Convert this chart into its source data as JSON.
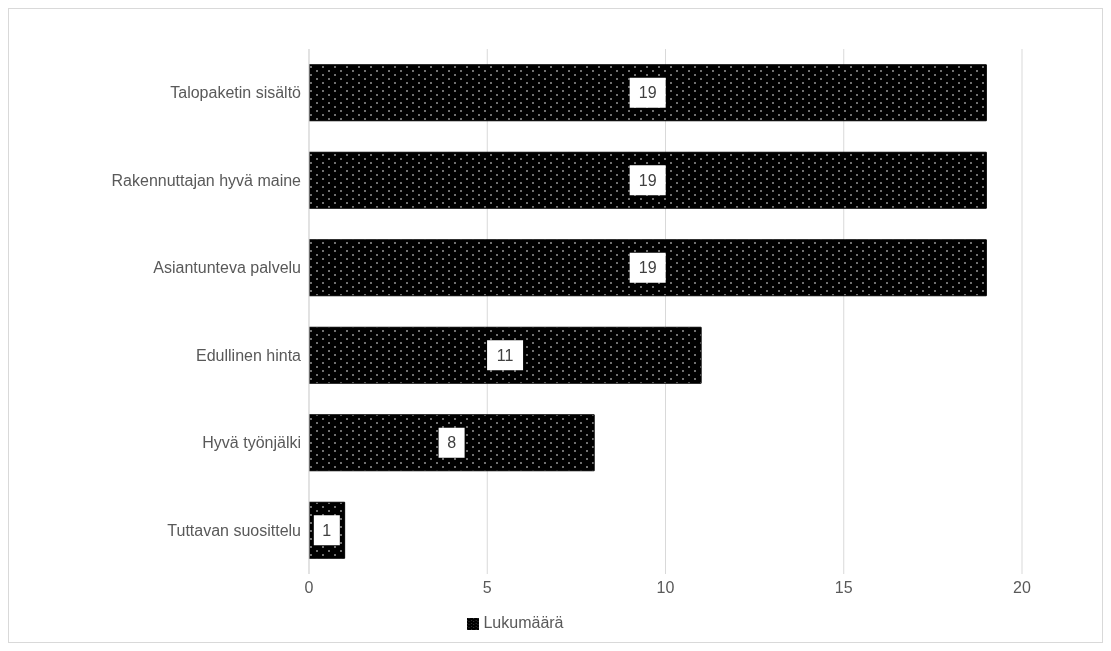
{
  "chart_data": {
    "type": "bar",
    "orientation": "horizontal",
    "categories": [
      "Talopaketin sisältö",
      "Rakennuttajan hyvä maine",
      "Asiantunteva palvelu",
      "Edullinen hinta",
      "Hyvä työnjälki",
      "Tuttavan suosittelu"
    ],
    "series": [
      {
        "name": "Lukumäärä",
        "color": "#000000",
        "values": [
          19,
          19,
          19,
          11,
          8,
          1
        ]
      }
    ],
    "xlim": [
      0,
      20
    ],
    "xticks": [
      0,
      5,
      10,
      15,
      20
    ],
    "grid": "x",
    "legend": "bottom",
    "data_labels": true
  }
}
